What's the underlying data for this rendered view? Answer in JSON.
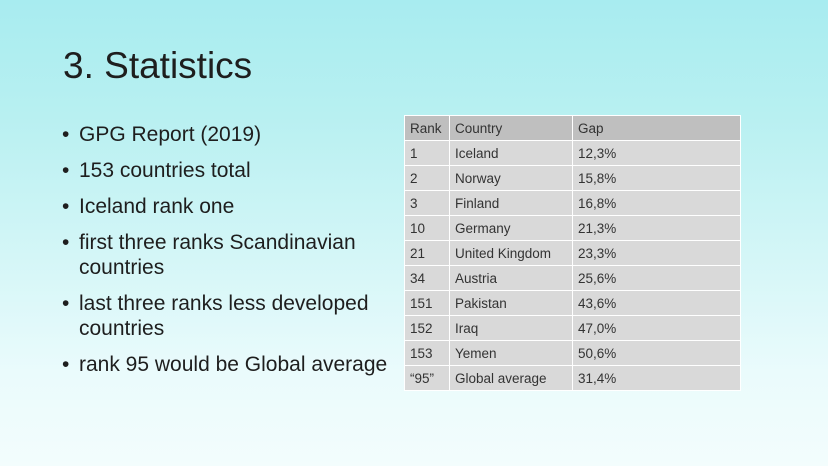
{
  "slide": {
    "title": "3. Statistics",
    "bullets": [
      "GPG Report (2019)",
      "153 countries total",
      "Iceland rank one",
      "first three ranks Scandinavian countries",
      "last three ranks less developed countries",
      "rank 95 would be Global average"
    ]
  },
  "table": {
    "headers": [
      "Rank",
      "Country",
      "Gap"
    ],
    "rows": [
      [
        "1",
        "Iceland",
        "12,3%"
      ],
      [
        "2",
        "Norway",
        "15,8%"
      ],
      [
        "3",
        "Finland",
        "16,8%"
      ],
      [
        "10",
        "Germany",
        "21,3%"
      ],
      [
        "21",
        "United Kingdom",
        "23,3%"
      ],
      [
        "34",
        "Austria",
        "25,6%"
      ],
      [
        "151",
        "Pakistan",
        "43,6%"
      ],
      [
        "152",
        "Iraq",
        "47,0%"
      ],
      [
        "153",
        "Yemen",
        "50,6%"
      ],
      [
        "“95”",
        "Global average",
        "31,4%"
      ]
    ]
  }
}
